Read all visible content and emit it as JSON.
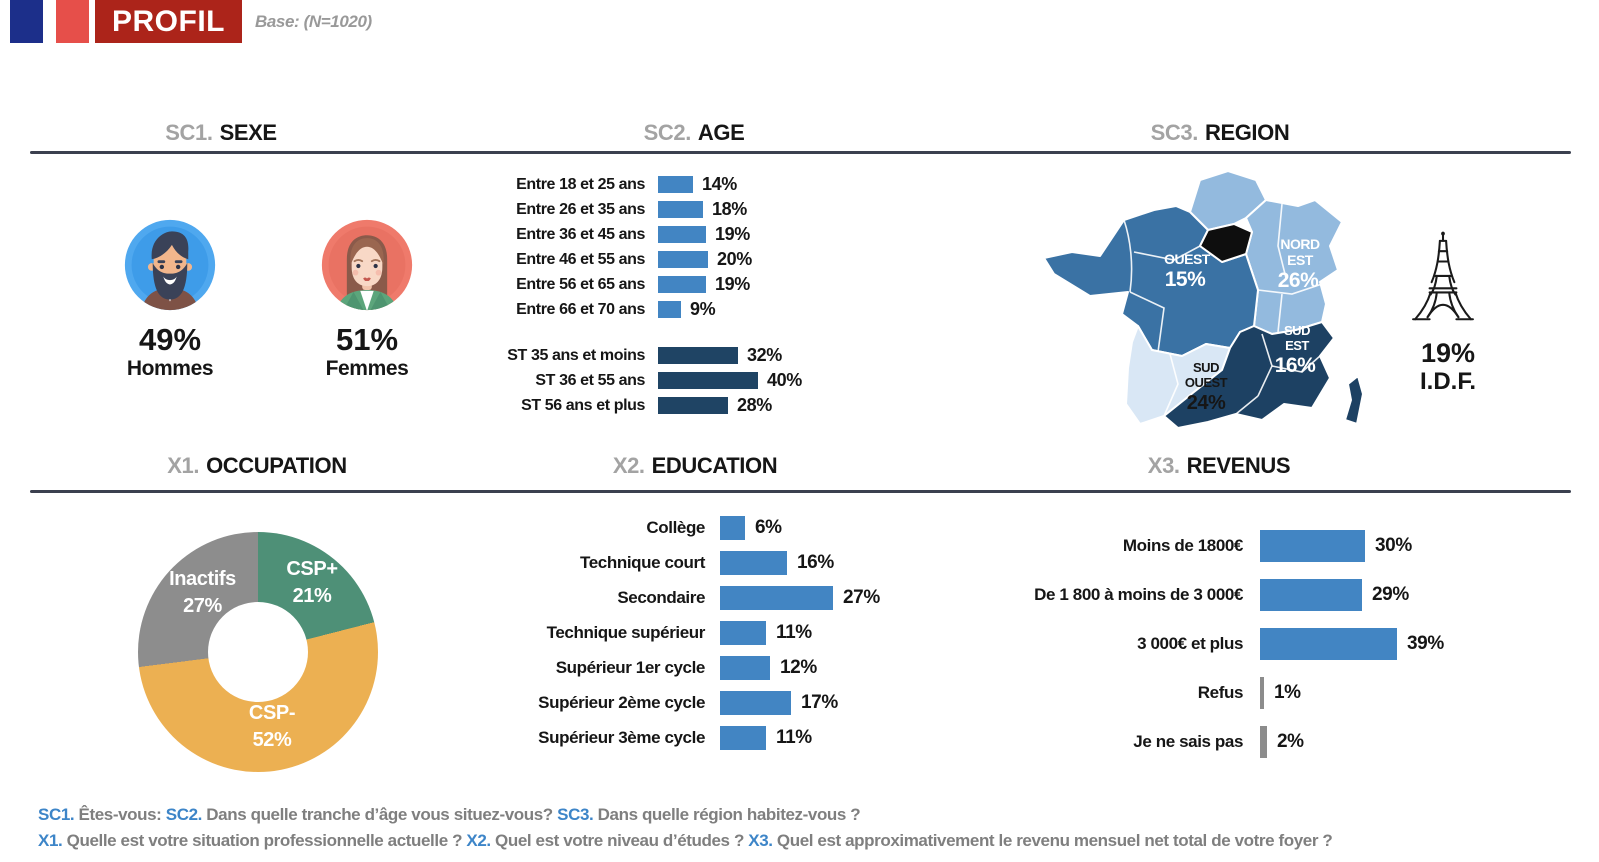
{
  "colors": {
    "bar_blue": "#4285c3",
    "bar_navy": "#1f4464",
    "bar_gray": "#8c8c8c",
    "donut_green": "#4e9077",
    "donut_orange": "#ecb052",
    "donut_gray": "#8d8d8d",
    "map_light": "#93bade",
    "map_medium": "#3a72a4",
    "map_pale": "#d9e7f5",
    "map_dark": "#1d4163",
    "map_idf": "#0e0e0e",
    "accent_blue": "#3d85c8",
    "flag_blue": "#1c2f8a",
    "flag_red": "#e64f4a",
    "banner_red": "#ac241a",
    "separator": "#3b404f"
  },
  "header": {
    "title": "PROFIL",
    "base": "Base: (N=1020)"
  },
  "sections": {
    "sexe": {
      "prefix": "SC1.",
      "title": "SEXE"
    },
    "age": {
      "prefix": "SC2.",
      "title": "AGE"
    },
    "region": {
      "prefix": "SC3.",
      "title": "REGION"
    },
    "occupation": {
      "prefix": "X1.",
      "title": "OCCUPATION"
    },
    "education": {
      "prefix": "X2.",
      "title": "EDUCATION"
    },
    "revenus": {
      "prefix": "X3.",
      "title": "REVENUS"
    }
  },
  "chart_data": [
    {
      "type": "pictogram",
      "title": "SC1. SEXE",
      "categories": [
        "Hommes",
        "Femmes"
      ],
      "values": [
        49,
        51
      ],
      "unit": "%"
    },
    {
      "type": "bar",
      "title": "SC2. AGE",
      "orientation": "horizontal",
      "categories": [
        "Entre 18 et 25 ans",
        "Entre 26 et 35 ans",
        "Entre 36 et 45 ans",
        "Entre 46 et 55 ans",
        "Entre 56 et 65 ans",
        "Entre 66 et 70 ans"
      ],
      "values": [
        14,
        18,
        19,
        20,
        19,
        9
      ],
      "subtotals": {
        "categories": [
          "ST 35 ans et moins",
          "ST 36 et 55 ans",
          "ST 56 ans et plus"
        ],
        "values": [
          32,
          40,
          28
        ]
      },
      "unit": "%"
    },
    {
      "type": "map",
      "title": "SC3. REGION",
      "regions": [
        {
          "label": "OUEST",
          "value": 15
        },
        {
          "label": "NORD EST",
          "value": 26
        },
        {
          "label": "SUD OUEST",
          "value": 24
        },
        {
          "label": "SUD EST",
          "value": 16
        },
        {
          "label": "I.D.F.",
          "value": 19
        }
      ],
      "unit": "%"
    },
    {
      "type": "pie",
      "title": "X1. OCCUPATION",
      "categories": [
        "CSP+",
        "CSP-",
        "Inactifs"
      ],
      "values": [
        21,
        52,
        27
      ],
      "unit": "%"
    },
    {
      "type": "bar",
      "title": "X2. EDUCATION",
      "orientation": "horizontal",
      "categories": [
        "Collège",
        "Technique court",
        "Secondaire",
        "Technique supérieur",
        "Supérieur 1er cycle",
        "Supérieur 2ème cycle",
        "Supérieur 3ème cycle"
      ],
      "values": [
        6,
        16,
        27,
        11,
        12,
        17,
        11
      ],
      "unit": "%"
    },
    {
      "type": "bar",
      "title": "X3. REVENUS",
      "orientation": "horizontal",
      "categories": [
        "Moins de 1800€",
        "De 1 800 à moins de 3 000€",
        "3 000€ et plus",
        "Refus",
        "Je ne sais pas"
      ],
      "values": [
        30,
        29,
        39,
        1,
        2
      ],
      "muted_categories": [
        "Refus",
        "Je ne sais pas"
      ],
      "unit": "%"
    }
  ],
  "footer": {
    "line1": [
      {
        "text": "SC1.",
        "style": "accent"
      },
      {
        "text": " Êtes-vous: ",
        "style": "plain"
      },
      {
        "text": "SC2.",
        "style": "accent"
      },
      {
        "text": " Dans quelle tranche d’âge vous situez-vous? ",
        "style": "plain"
      },
      {
        "text": "SC3.",
        "style": "accent"
      },
      {
        "text": " Dans quelle région habitez-vous ?",
        "style": "plain"
      }
    ],
    "line2": [
      {
        "text": "X1.",
        "style": "accent"
      },
      {
        "text": " Quelle est votre situation professionnelle actuelle ? ",
        "style": "plain"
      },
      {
        "text": "X2.",
        "style": "accent"
      },
      {
        "text": " Quel est votre niveau d’études ? ",
        "style": "plain"
      },
      {
        "text": "X3.",
        "style": "accent"
      },
      {
        "text": " Quel est approximativement le revenu mensuel net total de votre foyer ?",
        "style": "plain"
      }
    ]
  }
}
